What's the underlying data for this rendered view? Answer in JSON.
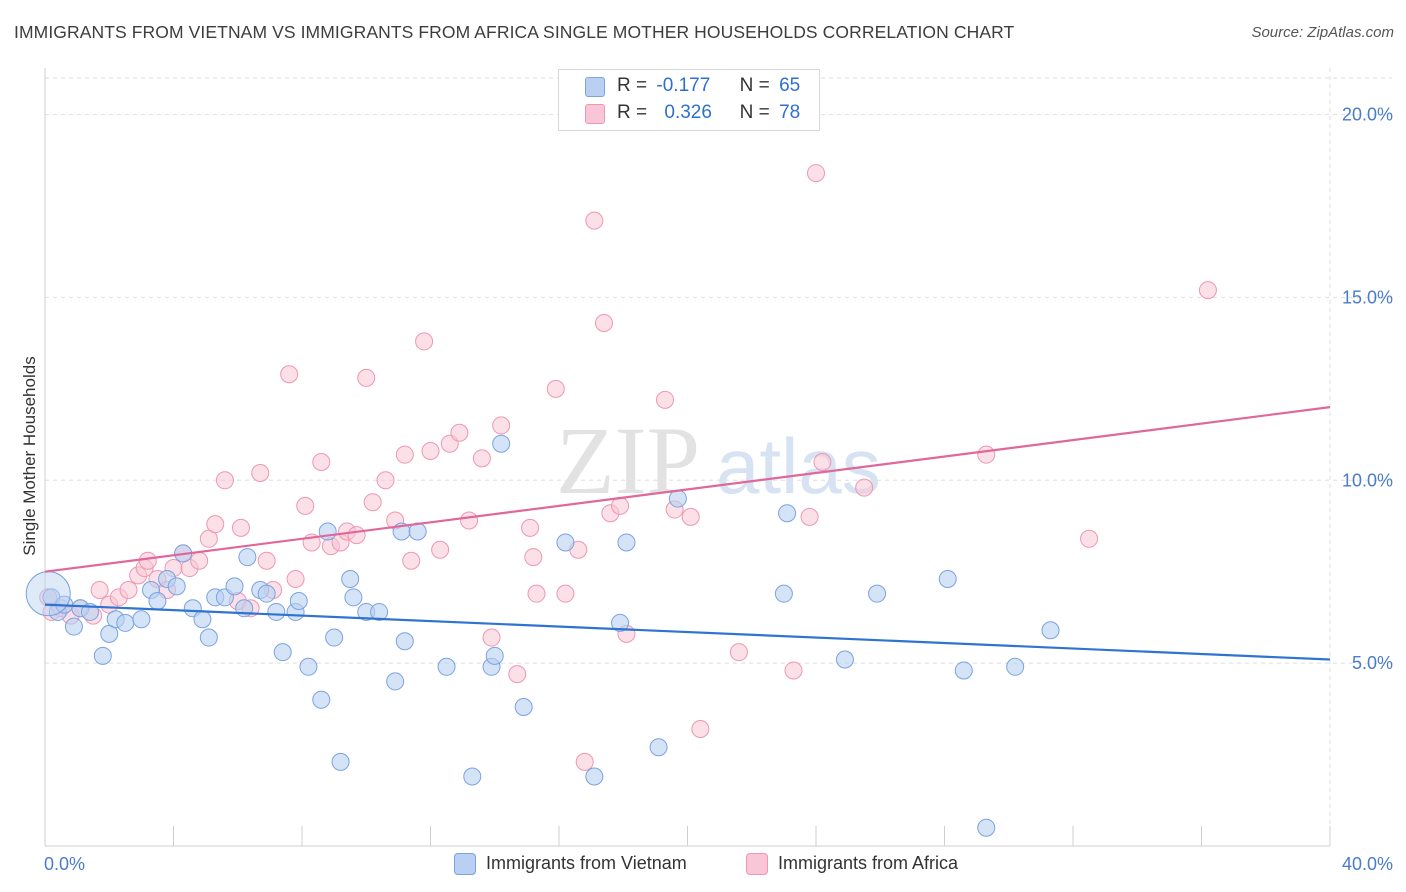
{
  "title": "IMMIGRANTS FROM VIETNAM VS IMMIGRANTS FROM AFRICA SINGLE MOTHER HOUSEHOLDS CORRELATION CHART",
  "source": "Source: ZipAtlas.com",
  "watermark": {
    "zip": "ZIP",
    "atlas": "atlas"
  },
  "legend": {
    "rows": [
      {
        "r_label": "R =",
        "r_value": "-0.177",
        "n_label": "N =",
        "n_value": "65"
      },
      {
        "r_label": "R =",
        "r_value": "0.326",
        "n_label": "N =",
        "n_value": "78"
      }
    ]
  },
  "bottom_legend": {
    "vietnam": "Immigrants from Vietnam",
    "africa": "Immigrants from Africa"
  },
  "chart_data": {
    "type": "scatter",
    "title": "IMMIGRANTS FROM VIETNAM VS IMMIGRANTS FROM AFRICA SINGLE MOTHER HOUSEHOLDS CORRELATION CHART",
    "xlabel": "",
    "ylabel": "Single Mother Households",
    "xlim": [
      0,
      40
    ],
    "ylim": [
      0,
      21
    ],
    "x_tick_labels": [
      "0.0%",
      "40.0%"
    ],
    "y_ticks": [
      5,
      10,
      15,
      20
    ],
    "y_tick_labels": [
      "5.0%",
      "10.0%",
      "15.0%",
      "20.0%"
    ],
    "grid": true,
    "legend_position": "top-center",
    "colors": {
      "vietnam_fill": "#b9d0f2",
      "vietnam_stroke": "#7aa3e0",
      "vietnam_line": "#2f74d0",
      "africa_fill": "#f8c6d6",
      "africa_stroke": "#ee97b3",
      "africa_line": "#e0679a"
    },
    "series": [
      {
        "name": "Immigrants from Vietnam",
        "trend": {
          "x": [
            0,
            40
          ],
          "y": [
            6.6,
            5.1
          ]
        },
        "points": [
          [
            0.2,
            6.8
          ],
          [
            0.4,
            6.4
          ],
          [
            0.6,
            6.6
          ],
          [
            0.9,
            6.0
          ],
          [
            1.1,
            6.5
          ],
          [
            1.4,
            6.4
          ],
          [
            1.8,
            5.2
          ],
          [
            2.0,
            5.8
          ],
          [
            2.2,
            6.2
          ],
          [
            2.5,
            6.1
          ],
          [
            3.0,
            6.2
          ],
          [
            3.3,
            7.0
          ],
          [
            3.5,
            6.7
          ],
          [
            3.8,
            7.3
          ],
          [
            4.1,
            7.1
          ],
          [
            4.3,
            8.0
          ],
          [
            4.6,
            6.5
          ],
          [
            4.9,
            6.2
          ],
          [
            5.1,
            5.7
          ],
          [
            5.3,
            6.8
          ],
          [
            5.6,
            6.8
          ],
          [
            5.9,
            7.1
          ],
          [
            6.2,
            6.5
          ],
          [
            6.3,
            7.9
          ],
          [
            6.7,
            7.0
          ],
          [
            6.9,
            6.9
          ],
          [
            7.2,
            6.4
          ],
          [
            7.4,
            5.3
          ],
          [
            7.8,
            6.4
          ],
          [
            7.9,
            6.7
          ],
          [
            8.2,
            4.9
          ],
          [
            8.6,
            4.0
          ],
          [
            8.8,
            8.6
          ],
          [
            9.0,
            5.7
          ],
          [
            9.2,
            2.3
          ],
          [
            9.5,
            7.3
          ],
          [
            9.6,
            6.8
          ],
          [
            10.0,
            6.4
          ],
          [
            10.4,
            6.4
          ],
          [
            10.9,
            4.5
          ],
          [
            11.1,
            8.6
          ],
          [
            11.2,
            5.6
          ],
          [
            11.6,
            8.6
          ],
          [
            12.5,
            4.9
          ],
          [
            13.3,
            1.9
          ],
          [
            13.9,
            4.9
          ],
          [
            14.0,
            5.2
          ],
          [
            14.2,
            11.0
          ],
          [
            14.9,
            3.8
          ],
          [
            16.2,
            8.3
          ],
          [
            17.1,
            1.9
          ],
          [
            17.9,
            6.1
          ],
          [
            18.1,
            8.3
          ],
          [
            19.1,
            2.7
          ],
          [
            19.7,
            9.5
          ],
          [
            23.0,
            6.9
          ],
          [
            23.1,
            9.1
          ],
          [
            24.9,
            5.1
          ],
          [
            25.9,
            6.9
          ],
          [
            28.1,
            7.3
          ],
          [
            28.6,
            4.8
          ],
          [
            29.3,
            0.5
          ],
          [
            30.2,
            4.9
          ],
          [
            31.3,
            5.9
          ],
          [
            0.1,
            6.9
          ]
        ]
      },
      {
        "name": "Immigrants from Africa",
        "trend": {
          "x": [
            0,
            40
          ],
          "y": [
            7.5,
            12.0
          ]
        },
        "points": [
          [
            0.1,
            6.8
          ],
          [
            0.2,
            6.4
          ],
          [
            0.5,
            6.5
          ],
          [
            0.8,
            6.3
          ],
          [
            1.1,
            6.5
          ],
          [
            1.5,
            6.3
          ],
          [
            1.7,
            7.0
          ],
          [
            2.0,
            6.6
          ],
          [
            2.3,
            6.8
          ],
          [
            2.6,
            7.0
          ],
          [
            2.9,
            7.4
          ],
          [
            3.1,
            7.6
          ],
          [
            3.2,
            7.8
          ],
          [
            3.5,
            7.3
          ],
          [
            3.8,
            7.0
          ],
          [
            4.0,
            7.6
          ],
          [
            4.3,
            8.0
          ],
          [
            4.5,
            7.6
          ],
          [
            4.8,
            7.8
          ],
          [
            5.1,
            8.4
          ],
          [
            5.3,
            8.8
          ],
          [
            5.6,
            10.0
          ],
          [
            6.0,
            6.7
          ],
          [
            6.1,
            8.7
          ],
          [
            6.4,
            6.5
          ],
          [
            6.7,
            10.2
          ],
          [
            6.9,
            7.8
          ],
          [
            7.1,
            7.0
          ],
          [
            7.6,
            12.9
          ],
          [
            7.8,
            7.3
          ],
          [
            8.1,
            9.3
          ],
          [
            8.3,
            8.3
          ],
          [
            8.6,
            10.5
          ],
          [
            8.9,
            8.2
          ],
          [
            9.2,
            8.3
          ],
          [
            9.4,
            8.6
          ],
          [
            9.7,
            8.5
          ],
          [
            10.0,
            12.8
          ],
          [
            10.2,
            9.4
          ],
          [
            10.6,
            10.0
          ],
          [
            10.9,
            8.9
          ],
          [
            11.2,
            10.7
          ],
          [
            11.4,
            7.8
          ],
          [
            11.8,
            13.8
          ],
          [
            12.0,
            10.8
          ],
          [
            12.3,
            8.1
          ],
          [
            12.6,
            11.0
          ],
          [
            12.9,
            11.3
          ],
          [
            13.2,
            8.9
          ],
          [
            13.6,
            10.6
          ],
          [
            13.9,
            5.7
          ],
          [
            14.2,
            11.5
          ],
          [
            14.7,
            4.7
          ],
          [
            15.1,
            8.7
          ],
          [
            15.2,
            7.9
          ],
          [
            15.3,
            6.9
          ],
          [
            15.9,
            12.5
          ],
          [
            16.2,
            6.9
          ],
          [
            16.6,
            8.1
          ],
          [
            16.8,
            2.3
          ],
          [
            17.1,
            17.1
          ],
          [
            17.4,
            14.3
          ],
          [
            17.6,
            9.1
          ],
          [
            17.9,
            9.3
          ],
          [
            18.1,
            5.8
          ],
          [
            19.3,
            12.2
          ],
          [
            19.6,
            9.2
          ],
          [
            20.1,
            9.0
          ],
          [
            20.4,
            3.2
          ],
          [
            21.6,
            5.3
          ],
          [
            23.3,
            4.8
          ],
          [
            23.8,
            9.0
          ],
          [
            24.0,
            18.4
          ],
          [
            24.2,
            10.5
          ],
          [
            25.5,
            9.8
          ],
          [
            29.3,
            10.7
          ],
          [
            32.5,
            8.4
          ],
          [
            36.2,
            15.2
          ]
        ]
      }
    ]
  }
}
